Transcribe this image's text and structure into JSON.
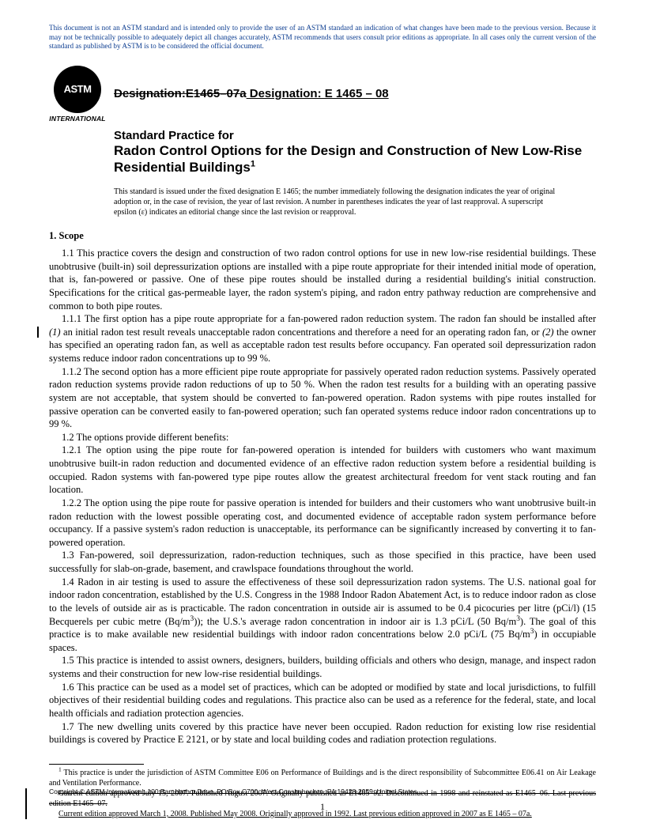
{
  "disclaimer": "This document is not an ASTM standard and is intended only to provide the user of an ASTM standard an indication of what changes have been made to the previous version. Because it may not be technically possible to adequately depict all changes accurately, ASTM recommends that users consult prior editions as appropriate. In all cases only the current version of the standard as published by ASTM is to be considered the official document.",
  "logo": {
    "text": "ASTM",
    "label": "INTERNATIONAL"
  },
  "designation": {
    "old": "Designation:E1465–07a",
    "new": " Designation: E 1465 – 08"
  },
  "title": {
    "line1": "Standard Practice for",
    "line2": "Radon Control Options for the Design and Construction of New Low-Rise Residential Buildings",
    "sup": "1"
  },
  "issued": "This standard is issued under the fixed designation E 1465; the number immediately following the designation indicates the year of original adoption or, in the case of revision, the year of last revision. A number in parentheses indicates the year of last reapproval. A superscript epsilon (ε) indicates an editorial change since the last revision or reapproval.",
  "section1_head": "1. Scope",
  "p1_1": "1.1 This practice covers the design and construction of two radon control options for use in new low-rise residential buildings. These unobtrusive (built-in) soil depressurization options are installed with a pipe route appropriate for their intended initial mode of operation, that is, fan-powered or passive. One of these pipe routes should be installed during a residential building's initial construction. Specifications for the critical gas-permeable layer, the radon system's piping, and radon entry pathway reduction are comprehensive and common to both pipe routes.",
  "p1_1_1a": "1.1.1 The first option has a pipe route appropriate for a fan-powered radon reduction system. The radon fan should be installed after ",
  "p1_1_1_i1": "(1)",
  "p1_1_1b": " an initial radon test result reveals unacceptable radon concentrations and therefore a need for an operating radon fan, or ",
  "p1_1_1_i2": "(2)",
  "p1_1_1c": " the owner has specified an operating radon fan, as well as acceptable radon test results before occupancy. Fan operated soil depressurization radon systems reduce indoor radon concentrations up to 99 %.",
  "p1_1_2": "1.1.2 The second option has a more efficient pipe route appropriate for passively operated radon reduction systems. Passively operated radon reduction systems provide radon reductions of up to 50 %. When the radon test results for a building with an operating passive system are not acceptable, that system should be converted to fan-powered operation. Radon systems with pipe routes installed for passive operation can be converted easily to fan-powered operation; such fan operated systems reduce indoor radon concentrations up to 99 %.",
  "p1_2": "1.2 The options provide different benefits:",
  "p1_2_1": "1.2.1 The option using the pipe route for fan-powered operation is intended for builders with customers who want maximum unobtrusive built-in radon reduction and documented evidence of an effective radon reduction system before a residential building is occupied. Radon systems with fan-powered type pipe routes allow the greatest architectural freedom for vent stack routing and fan location.",
  "p1_2_2": "1.2.2 The option using the pipe route for passive operation is intended for builders and their customers who want unobtrusive built-in radon reduction with the lowest possible operating cost, and documented evidence of acceptable radon system performance before occupancy. If a passive system's radon reduction is unacceptable, its performance can be significantly increased by converting it to fan-powered operation.",
  "p1_3": "1.3 Fan-powered, soil depressurization, radon-reduction techniques, such as those specified in this practice, have been used successfully for slab-on-grade, basement, and crawlspace foundations throughout the world.",
  "p1_4a": "1.4 Radon in air testing is used to assure the effectiveness of these soil depressurization radon systems. The U.S. national goal for indoor radon concentration, established by the U.S. Congress in the 1988 Indoor Radon Abatement Act, is to reduce indoor radon as close to the levels of outside air as is practicable. The radon concentration in outside air is assumed to be 0.4 picocuries per litre (pCi/l) (15 Becquerels per cubic metre (Bq/m",
  "p1_4b": ")); the U.S.'s average radon concentration in indoor air is 1.3 pCi/L (50 Bq/m",
  "p1_4c": "). The goal of this practice is to make available new residential buildings with indoor radon concentrations below 2.0 pCi/L (75 Bq/m",
  "p1_4d": ") in occupiable spaces.",
  "p1_5": "1.5 This practice is intended to assist owners, designers, builders, building officials and others who design, manage, and inspect radon systems and their construction for new low-rise residential buildings.",
  "p1_6": "1.6 This practice can be used as a model set of practices, which can be adopted or modified by state and local jurisdictions, to fulfill objectives of their residential building codes and regulations. This practice also can be used as a reference for the federal, state, and local health officials and radiation protection agencies.",
  "p1_7": "1.7 The new dwelling units covered by this practice have never been occupied. Radon reduction for existing low rise residential buildings is covered by Practice E 2121, or by state and local building codes and radiation protection regulations.",
  "fn_sup": "1",
  "fn1a": " This practice is under the jurisdiction of ASTM Committee E06 on Performance of Buildings and is the direct responsibility of Subcommittee E06.41 on Air Leakage and Ventilation Performance.",
  "fn1_old": "Current edition approved July 15, 2007. Published August 2007. Originally published as E1465–92. Discontinued in 1998 and reinstated as E1465–06. Last previous edition E1465–07.",
  "fn1_new": "Current edition approved March 1, 2008. Published May 2008. Originally approved in 1992. Last previous edition approved in 2007 as E 1465 – 07a.",
  "copyright": "Copyright © ASTM International, 100 Barr Harbor Drive, PO Box C700, West Conshohocken, PA 19428-2959, United States.",
  "pagenum": "1"
}
